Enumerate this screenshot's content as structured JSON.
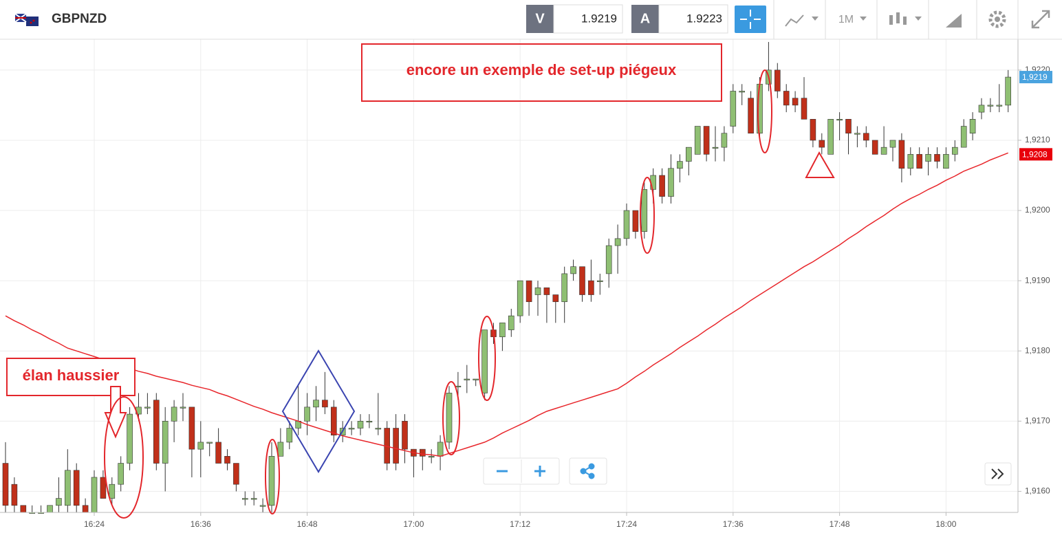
{
  "toolbar": {
    "symbol": "GBPNZD",
    "sell_label": "V",
    "sell_price": "1.9219",
    "buy_label": "A",
    "buy_price": "1.9223",
    "timeframe": "1M"
  },
  "chart_data": {
    "type": "candlestick",
    "annotations": [
      "encore un exemple de set-up piégeux",
      "élan haussier"
    ],
    "categories": [
      null,
      null,
      null,
      null,
      null,
      null,
      null,
      null,
      null,
      null,
      "16:24",
      null,
      null,
      null,
      null,
      null,
      null,
      null,
      null,
      null,
      null,
      null,
      "16:36",
      null,
      null,
      null,
      null,
      null,
      null,
      null,
      null,
      null,
      null,
      null,
      "16:48",
      null,
      null,
      null,
      null,
      null,
      null,
      null,
      null,
      null,
      null,
      null,
      "17:00",
      null,
      null,
      null,
      null,
      null,
      null,
      null,
      null,
      null,
      null,
      null,
      "17:12",
      null,
      null,
      null,
      null,
      null,
      null,
      null,
      null,
      null,
      null,
      null,
      "17:24",
      null,
      null,
      null,
      null,
      null,
      null,
      null,
      null,
      null,
      null,
      null,
      "17:36",
      null,
      null,
      null,
      null,
      null,
      null,
      null,
      null,
      null,
      null,
      null,
      "17:48",
      null,
      null,
      null,
      null,
      null,
      null,
      null,
      null,
      null,
      null,
      null,
      "18:00",
      null,
      null,
      null,
      null,
      null,
      null,
      null
    ],
    "open": [
      1.9164,
      1.9161,
      1.9158,
      1.9157,
      1.9157,
      1.9157,
      1.9158,
      1.9158,
      1.9163,
      1.9158,
      1.9157,
      1.9162,
      1.9159,
      1.9161,
      1.9164,
      1.9171,
      1.9172,
      1.9173,
      1.9164,
      1.917,
      1.9172,
      1.9172,
      1.9166,
      1.9167,
      1.9167,
      1.9165,
      1.9164,
      1.9159,
      1.9159,
      1.9158,
      1.9158,
      1.9165,
      1.9167,
      1.9169,
      1.917,
      1.9172,
      1.9173,
      1.9172,
      1.9168,
      1.9169,
      1.9169,
      1.917,
      1.9169,
      1.9169,
      1.9169,
      1.917,
      1.9166,
      1.9166,
      1.9165,
      1.9165,
      1.9167,
      1.9175,
      1.9176,
      1.9176,
      1.9174,
      1.9183,
      1.9182,
      1.9183,
      1.9185,
      1.919,
      1.9188,
      1.9189,
      1.9188,
      1.9187,
      1.9191,
      1.9192,
      1.919,
      1.919,
      1.9191,
      1.9195,
      1.9196,
      1.92,
      1.9197,
      1.9203,
      1.9205,
      1.9202,
      1.9206,
      1.9207,
      1.9208,
      1.9212,
      1.9209,
      1.9209,
      1.9212,
      1.9217,
      1.9216,
      1.9211,
      1.9218,
      1.922,
      1.9217,
      1.9216,
      1.9216,
      1.9213,
      1.921,
      1.9208,
      1.9213,
      1.9213,
      1.9211,
      1.9211,
      1.921,
      1.9208,
      1.9209,
      1.921,
      1.9206,
      1.9208,
      1.9207,
      1.9208,
      1.9206,
      1.9208,
      1.9209,
      1.9211,
      1.9214,
      1.9215,
      1.9215,
      1.9215
    ],
    "high": [
      1.9167,
      1.9162,
      1.9158,
      1.9158,
      1.9158,
      1.9158,
      1.9162,
      1.9166,
      1.9164,
      1.9159,
      1.9163,
      1.9163,
      1.9162,
      1.9165,
      1.9172,
      1.9174,
      1.9174,
      1.9174,
      1.9172,
      1.9173,
      1.9174,
      1.9172,
      1.917,
      1.9167,
      1.9169,
      1.9166,
      1.9164,
      1.916,
      1.916,
      1.9159,
      1.9167,
      1.9169,
      1.917,
      1.9175,
      1.9174,
      1.9175,
      1.9177,
      1.9173,
      1.917,
      1.917,
      1.9171,
      1.9171,
      1.9174,
      1.917,
      1.9171,
      1.9171,
      1.9166,
      1.9166,
      1.9166,
      1.9168,
      1.9175,
      1.9177,
      1.9178,
      1.9176,
      1.9183,
      1.9184,
      1.9184,
      1.9186,
      1.919,
      1.919,
      1.919,
      1.9189,
      1.9188,
      1.9192,
      1.9193,
      1.9192,
      1.9193,
      1.9191,
      1.9196,
      1.9198,
      1.9201,
      1.92,
      1.9204,
      1.9206,
      1.9206,
      1.9208,
      1.9208,
      1.9209,
      1.9212,
      1.9212,
      1.9212,
      1.9212,
      1.9218,
      1.9218,
      1.9217,
      1.9219,
      1.9224,
      1.9221,
      1.9218,
      1.9217,
      1.9219,
      1.9213,
      1.9211,
      1.9213,
      1.9214,
      1.9213,
      1.9212,
      1.9212,
      1.921,
      1.9212,
      1.921,
      1.9211,
      1.9209,
      1.9209,
      1.9209,
      1.9209,
      1.9209,
      1.921,
      1.9213,
      1.9214,
      1.9216,
      1.9216,
      1.9218,
      1.922
    ],
    "low": [
      1.9157,
      1.9157,
      1.9157,
      1.9157,
      1.9157,
      1.9157,
      1.9157,
      1.9157,
      1.9157,
      1.9157,
      1.9157,
      1.9159,
      1.9158,
      1.916,
      1.9163,
      1.917,
      1.9171,
      1.9163,
      1.916,
      1.9167,
      1.917,
      1.9162,
      1.9162,
      1.9165,
      1.9164,
      1.9163,
      1.916,
      1.9158,
      1.9158,
      1.9157,
      1.9157,
      1.9165,
      1.9166,
      1.9168,
      1.9168,
      1.917,
      1.9171,
      1.9167,
      1.9167,
      1.9168,
      1.9168,
      1.9169,
      1.9168,
      1.9163,
      1.9163,
      1.9164,
      1.9162,
      1.9163,
      1.9164,
      1.9163,
      1.9166,
      1.9173,
      1.9174,
      1.9175,
      1.9173,
      1.9181,
      1.918,
      1.9182,
      1.9184,
      1.9185,
      1.9185,
      1.9184,
      1.9184,
      1.9184,
      1.919,
      1.9187,
      1.9187,
      1.9188,
      1.9189,
      1.9191,
      1.9195,
      1.9196,
      1.9196,
      1.9201,
      1.9201,
      1.9201,
      1.9204,
      1.9205,
      1.9208,
      1.9207,
      1.9207,
      1.9207,
      1.9211,
      1.9215,
      1.9211,
      1.921,
      1.9217,
      1.9216,
      1.9214,
      1.9214,
      1.9213,
      1.9209,
      1.9208,
      1.9208,
      1.921,
      1.9208,
      1.9209,
      1.9209,
      1.9208,
      1.9208,
      1.9207,
      1.9204,
      1.9205,
      1.9206,
      1.9205,
      1.9206,
      1.9206,
      1.9207,
      1.9209,
      1.921,
      1.9213,
      1.9214,
      1.9214,
      1.9214
    ],
    "close": [
      1.9158,
      1.9158,
      1.9157,
      1.9157,
      1.9157,
      1.9158,
      1.9159,
      1.9163,
      1.9158,
      1.9157,
      1.9162,
      1.9159,
      1.9161,
      1.9164,
      1.9171,
      1.9172,
      1.9172,
      1.9164,
      1.917,
      1.9172,
      1.9172,
      1.9166,
      1.9167,
      1.9167,
      1.9164,
      1.9164,
      1.9161,
      1.9159,
      1.9159,
      1.9158,
      1.9165,
      1.9167,
      1.9169,
      1.917,
      1.9172,
      1.9173,
      1.9172,
      1.9168,
      1.9169,
      1.9169,
      1.917,
      1.917,
      1.9169,
      1.9164,
      1.9164,
      1.9166,
      1.9165,
      1.9165,
      1.9165,
      1.9167,
      1.9174,
      1.9175,
      1.9176,
      1.9176,
      1.9183,
      1.9182,
      1.9184,
      1.9185,
      1.919,
      1.9187,
      1.9189,
      1.9188,
      1.9187,
      1.9191,
      1.9192,
      1.9188,
      1.9188,
      1.919,
      1.9195,
      1.9196,
      1.92,
      1.9197,
      1.9203,
      1.9205,
      1.9202,
      1.9206,
      1.9207,
      1.9209,
      1.9212,
      1.9208,
      1.9209,
      1.9211,
      1.9217,
      1.9217,
      1.9211,
      1.9218,
      1.922,
      1.9217,
      1.9215,
      1.9215,
      1.9213,
      1.921,
      1.9209,
      1.9213,
      1.9213,
      1.9211,
      1.9211,
      1.921,
      1.9208,
      1.9209,
      1.921,
      1.9206,
      1.9208,
      1.9206,
      1.9208,
      1.9207,
      1.9208,
      1.9209,
      1.9212,
      1.9213,
      1.9215,
      1.9215,
      1.9215,
      1.9219
    ],
    "up_color": "#8fbf73",
    "down_color": "#c0301a",
    "moving_average": {
      "color": "#e8262b",
      "values": [
        1.9185,
        1.91843,
        1.91837,
        1.9183,
        1.91824,
        1.91817,
        1.91811,
        1.91804,
        1.918,
        1.91796,
        1.91792,
        1.91788,
        1.91783,
        1.91779,
        1.91775,
        1.91771,
        1.91768,
        1.91764,
        1.91761,
        1.91758,
        1.91755,
        1.91751,
        1.91748,
        1.91745,
        1.9174,
        1.91736,
        1.91731,
        1.91726,
        1.91721,
        1.91717,
        1.91712,
        1.91708,
        1.91704,
        1.917,
        1.91695,
        1.91691,
        1.91687,
        1.91683,
        1.91679,
        1.91676,
        1.91673,
        1.9167,
        1.91667,
        1.91664,
        1.91661,
        1.91658,
        1.91655,
        1.91653,
        1.91652,
        1.9165,
        1.91654,
        1.91658,
        1.91662,
        1.91666,
        1.9167,
        1.91676,
        1.91683,
        1.91689,
        1.91695,
        1.91701,
        1.91708,
        1.91714,
        1.91718,
        1.91722,
        1.91726,
        1.9173,
        1.91734,
        1.91738,
        1.91742,
        1.91746,
        1.91754,
        1.91763,
        1.91771,
        1.9178,
        1.91788,
        1.91796,
        1.91805,
        1.91813,
        1.91821,
        1.9183,
        1.91838,
        1.91847,
        1.91855,
        1.91863,
        1.91872,
        1.9188,
        1.91888,
        1.91896,
        1.91904,
        1.91912,
        1.9192,
        1.91927,
        1.91935,
        1.91943,
        1.91951,
        1.9196,
        1.91968,
        1.91977,
        1.91985,
        1.91993,
        1.92002,
        1.9201,
        1.92017,
        1.92023,
        1.9203,
        1.92036,
        1.92043,
        1.92049,
        1.92056,
        1.92061,
        1.92066,
        1.92072,
        1.92077,
        1.92082
      ]
    },
    "ylim": [
      1.9157,
      1.92241
    ],
    "yticks": [
      {
        "value": 1.916,
        "label": "1,9160"
      },
      {
        "value": 1.917,
        "label": "1,9170"
      },
      {
        "value": 1.918,
        "label": "1,9180"
      },
      {
        "value": 1.919,
        "label": "1,9190"
      },
      {
        "value": 1.92,
        "label": "1,9200"
      },
      {
        "value": 1.921,
        "label": "1,9210"
      },
      {
        "value": 1.922,
        "label": "1,9220"
      }
    ],
    "price_tags": [
      {
        "value": 1.9219,
        "label": "1,9219",
        "color": "#4aa3df"
      },
      {
        "value": 1.9208,
        "label": "1,9208",
        "color": "#e8000b"
      }
    ],
    "grid": true
  }
}
